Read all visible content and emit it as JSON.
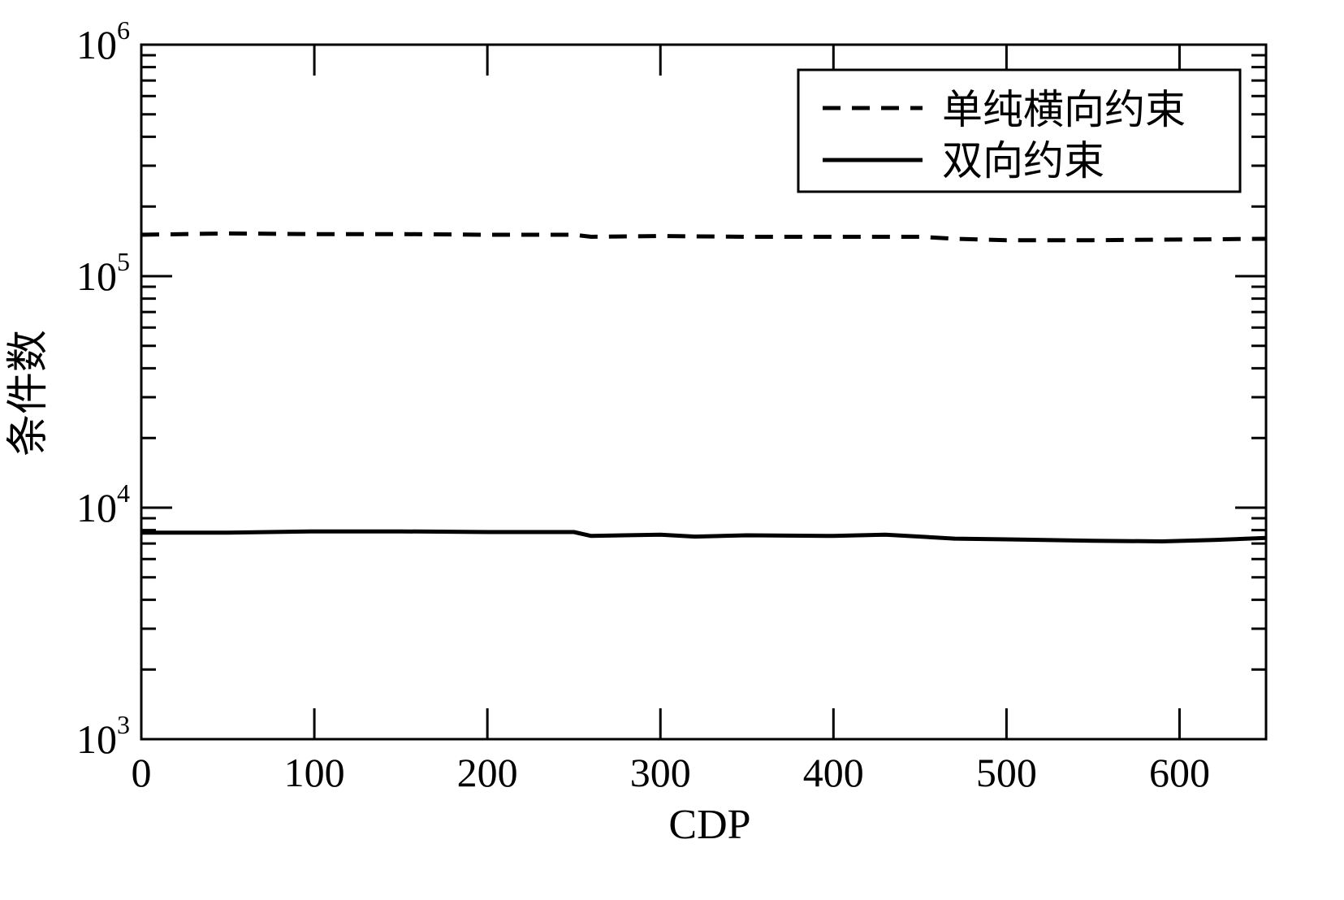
{
  "chart_data": {
    "type": "line",
    "xlabel": "CDP",
    "ylabel": "条件数",
    "xlim": [
      0,
      650
    ],
    "ylim": [
      1000,
      1000000
    ],
    "y_scale": "log",
    "x_ticks": [
      0,
      100,
      200,
      300,
      400,
      500,
      600
    ],
    "x_tick_labels": [
      "0",
      "100",
      "200",
      "300",
      "400",
      "500",
      "600"
    ],
    "y_ticks": [
      {
        "value": 1000,
        "base": "10",
        "exp": "3"
      },
      {
        "value": 10000,
        "base": "10",
        "exp": "4"
      },
      {
        "value": 100000,
        "base": "10",
        "exp": "5"
      },
      {
        "value": 1000000,
        "base": "10",
        "exp": "6"
      }
    ],
    "grid": false,
    "legend_position": "top-right",
    "series": [
      {
        "name": "单纯横向约束",
        "style": "dashed",
        "color": "#000000",
        "x": [
          0,
          50,
          100,
          150,
          200,
          250,
          260,
          300,
          350,
          400,
          450,
          470,
          500,
          550,
          600,
          650
        ],
        "y": [
          151000,
          153000,
          152000,
          152000,
          151000,
          151000,
          148000,
          149000,
          148000,
          148000,
          148000,
          145000,
          143000,
          143000,
          144000,
          145000
        ]
      },
      {
        "name": "双向约束",
        "style": "solid",
        "color": "#000000",
        "x": [
          0,
          50,
          100,
          150,
          200,
          250,
          260,
          300,
          320,
          350,
          400,
          430,
          470,
          500,
          550,
          590,
          620,
          650
        ],
        "y": [
          7800,
          7800,
          7900,
          7900,
          7850,
          7850,
          7550,
          7650,
          7500,
          7600,
          7550,
          7650,
          7350,
          7300,
          7200,
          7150,
          7250,
          7400
        ]
      }
    ]
  }
}
